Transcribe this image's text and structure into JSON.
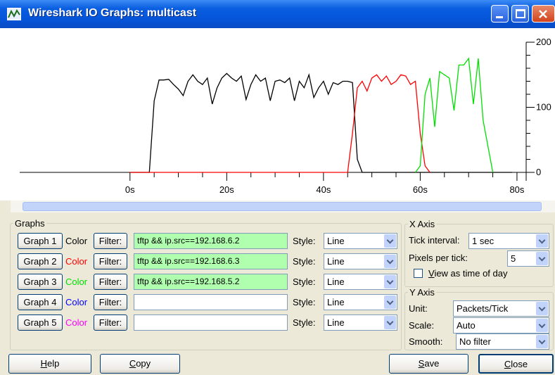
{
  "window": {
    "title": "Wireshark IO Graphs: multicast"
  },
  "chart_data": {
    "type": "line",
    "x": [
      0,
      1,
      2,
      3,
      4,
      5,
      6,
      7,
      8,
      9,
      10,
      11,
      12,
      13,
      14,
      15,
      16,
      17,
      18,
      19,
      20,
      21,
      22,
      23,
      24,
      25,
      26,
      27,
      28,
      29,
      30,
      31,
      32,
      33,
      34,
      35,
      36,
      37,
      38,
      39,
      40,
      41,
      42,
      43,
      44,
      45,
      46,
      47,
      48,
      49,
      50,
      51,
      52,
      53,
      54,
      55,
      56,
      57,
      58,
      59,
      60,
      61,
      62,
      63,
      64,
      65,
      66,
      67,
      68,
      69,
      70,
      71,
      72,
      73,
      74,
      75,
      76,
      77,
      78,
      79
    ],
    "series": [
      {
        "color": "#000000",
        "values": [
          0,
          0,
          0,
          0,
          0,
          110,
          142,
          142,
          143,
          135,
          128,
          118,
          140,
          150,
          140,
          135,
          145,
          105,
          130,
          145,
          152,
          145,
          140,
          148,
          112,
          135,
          150,
          140,
          145,
          110,
          140,
          142,
          138,
          145,
          110,
          140,
          130,
          150,
          115,
          130,
          140,
          120,
          138,
          135,
          140,
          140,
          138,
          20,
          0,
          0,
          0,
          0,
          0,
          0,
          0,
          0,
          0,
          0,
          0,
          0,
          0,
          0,
          0,
          0,
          0,
          0,
          0,
          0,
          0,
          0,
          0,
          0,
          0,
          0,
          0,
          0,
          0,
          0,
          0,
          0
        ]
      },
      {
        "color": "#ff0000",
        "values": [
          0,
          0,
          0,
          0,
          0,
          0,
          0,
          0,
          0,
          0,
          0,
          0,
          0,
          0,
          0,
          0,
          0,
          0,
          0,
          0,
          0,
          0,
          0,
          0,
          0,
          0,
          0,
          0,
          0,
          0,
          0,
          0,
          0,
          0,
          0,
          0,
          0,
          0,
          0,
          0,
          0,
          0,
          0,
          0,
          0,
          0,
          60,
          130,
          140,
          125,
          145,
          150,
          140,
          148,
          135,
          140,
          150,
          148,
          135,
          140,
          60,
          10,
          0,
          null,
          null,
          null,
          null,
          null,
          null,
          null,
          null,
          null,
          null,
          null,
          null,
          null,
          null,
          null,
          null,
          null
        ]
      },
      {
        "color": "#00e000",
        "values": [
          null,
          null,
          null,
          null,
          null,
          null,
          null,
          null,
          null,
          null,
          null,
          null,
          null,
          null,
          null,
          null,
          null,
          null,
          null,
          null,
          null,
          null,
          null,
          null,
          null,
          null,
          null,
          null,
          null,
          null,
          null,
          null,
          null,
          null,
          null,
          null,
          null,
          null,
          null,
          null,
          null,
          null,
          null,
          null,
          null,
          null,
          null,
          null,
          null,
          null,
          null,
          null,
          null,
          null,
          null,
          null,
          null,
          null,
          null,
          0,
          10,
          120,
          145,
          70,
          155,
          150,
          145,
          95,
          165,
          165,
          175,
          105,
          175,
          80,
          40,
          0,
          null,
          null,
          null,
          null
        ]
      }
    ],
    "xlim": [
      -22.8,
      81.9
    ],
    "xticks": [
      {
        "value": 0,
        "label": "0s"
      },
      {
        "value": 20,
        "label": "20s"
      },
      {
        "value": 40,
        "label": "40s"
      },
      {
        "value": 60,
        "label": "60s"
      },
      {
        "value": 80,
        "label": "80s"
      }
    ],
    "ylim": [
      0,
      200
    ],
    "yticks": [
      0,
      100,
      200
    ]
  },
  "graphs": {
    "title": "Graphs",
    "rows": [
      {
        "button": "Graph 1",
        "color_label": "Color",
        "color": "#000000",
        "filter_button": "Filter:",
        "filter": "tftp && ip.src==192.168.6.2",
        "style_label": "Style:",
        "style": "Line"
      },
      {
        "button": "Graph 2",
        "color_label": "Color",
        "color": "#ff0000",
        "filter_button": "Filter:",
        "filter": "tftp && ip.src==192.168.6.3",
        "style_label": "Style:",
        "style": "Line"
      },
      {
        "button": "Graph 3",
        "color_label": "Color",
        "color": "#00e000",
        "filter_button": "Filter:",
        "filter": "tftp && ip.src==192.168.5.2",
        "style_label": "Style:",
        "style": "Line"
      },
      {
        "button": "Graph 4",
        "color_label": "Color",
        "color": "#0000ff",
        "filter_button": "Filter:",
        "style_label": "Style:",
        "style": "Line"
      },
      {
        "button": "Graph 5",
        "color_label": "Color",
        "color": "#ff00ff",
        "filter_button": "Filter:",
        "style_label": "Style:",
        "style": "Line"
      }
    ]
  },
  "x_axis": {
    "title": "X Axis",
    "tick_interval_label": "Tick interval:",
    "tick_interval": "1 sec",
    "pixels_per_tick_label": "Pixels per tick:",
    "pixels_per_tick": "5",
    "view_time_of_day": "View as time of day"
  },
  "y_axis": {
    "title": "Y Axis",
    "unit_label": "Unit:",
    "unit": "Packets/Tick",
    "scale_label": "Scale:",
    "scale": "Auto",
    "smooth_label": "Smooth:",
    "smooth": "No filter"
  },
  "buttons": [
    "Help",
    "Copy",
    "Save",
    "Close"
  ]
}
